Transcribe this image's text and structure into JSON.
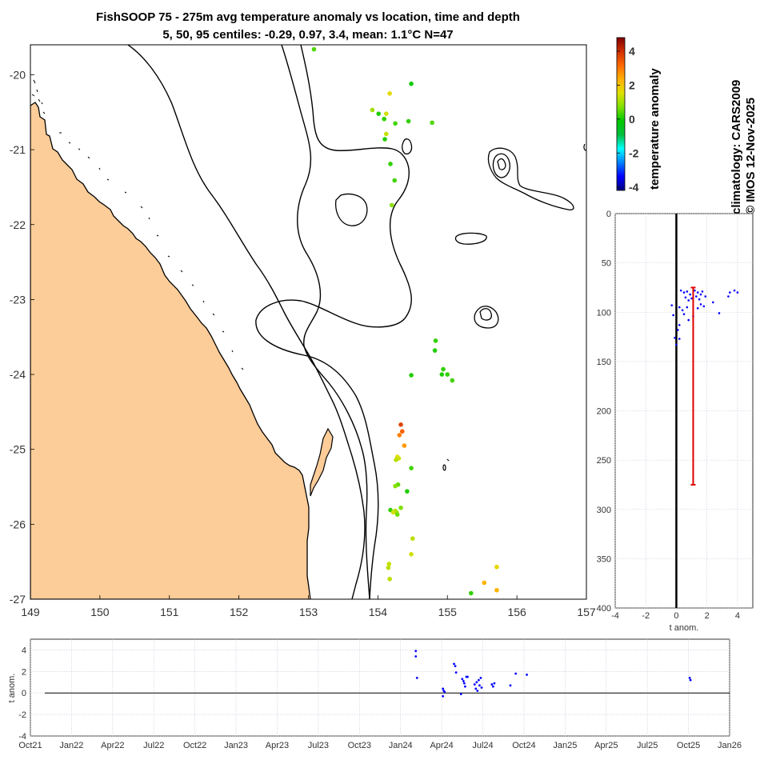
{
  "titles": {
    "line1": "FishSOOP 75 - 275m avg temperature anomaly vs location, time and depth",
    "line2": "5, 50, 95 centiles: -0.29, 0.97, 3.4, mean: 1.1°C N=47"
  },
  "side_text": {
    "climatology": "climatology: CARS2009",
    "copyright": "© IMOS 12-Nov-2025"
  },
  "chart_data": [
    {
      "type": "scatter",
      "name": "map",
      "xlabel": "",
      "ylabel": "",
      "xlim": [
        149,
        157
      ],
      "ylim": [
        -27,
        -19.6
      ],
      "x_ticks": [
        "149",
        "150",
        "151",
        "152",
        "153",
        "154",
        "155",
        "156",
        "157"
      ],
      "y_ticks": [
        "-20",
        "-21",
        "-22",
        "-23",
        "-24",
        "-25",
        "-26",
        "-27"
      ],
      "points": [
        {
          "lon": 153.08,
          "lat": -19.66,
          "anom": 0.4
        },
        {
          "lon": 154.48,
          "lat": -20.12,
          "anom": 0.0
        },
        {
          "lon": 154.17,
          "lat": -20.25,
          "anom": 1.6
        },
        {
          "lon": 153.92,
          "lat": -20.47,
          "anom": 1.0
        },
        {
          "lon": 154.01,
          "lat": -20.52,
          "anom": 0.1
        },
        {
          "lon": 154.12,
          "lat": -20.52,
          "anom": 1.4
        },
        {
          "lon": 154.09,
          "lat": -20.59,
          "anom": 0.2
        },
        {
          "lon": 154.25,
          "lat": -20.65,
          "anom": 0.3
        },
        {
          "lon": 154.44,
          "lat": -20.62,
          "anom": 0.2
        },
        {
          "lon": 154.78,
          "lat": -20.64,
          "anom": 0.4
        },
        {
          "lon": 154.12,
          "lat": -20.79,
          "anom": 1.3
        },
        {
          "lon": 154.1,
          "lat": -20.86,
          "anom": 0.1
        },
        {
          "lon": 154.18,
          "lat": -21.19,
          "anom": 0.2
        },
        {
          "lon": 154.24,
          "lat": -21.41,
          "anom": 0.3
        },
        {
          "lon": 154.2,
          "lat": -21.74,
          "anom": 0.8
        },
        {
          "lon": 154.83,
          "lat": -23.55,
          "anom": 0.2
        },
        {
          "lon": 154.82,
          "lat": -23.68,
          "anom": 0.1
        },
        {
          "lon": 154.94,
          "lat": -23.93,
          "anom": 0.2
        },
        {
          "lon": 154.92,
          "lat": -24.0,
          "anom": 0.1
        },
        {
          "lon": 155.0,
          "lat": -24.0,
          "anom": 0.2
        },
        {
          "lon": 155.07,
          "lat": -24.08,
          "anom": 0.3
        },
        {
          "lon": 154.48,
          "lat": -24.01,
          "anom": 0.1
        },
        {
          "lon": 154.33,
          "lat": -24.67,
          "anom": 3.7
        },
        {
          "lon": 154.35,
          "lat": -24.76,
          "anom": 3.3
        },
        {
          "lon": 154.31,
          "lat": -24.81,
          "anom": 2.9
        },
        {
          "lon": 154.38,
          "lat": -24.95,
          "anom": 2.6
        },
        {
          "lon": 154.28,
          "lat": -25.1,
          "anom": 1.6
        },
        {
          "lon": 154.3,
          "lat": -25.12,
          "anom": 1.4
        },
        {
          "lon": 154.26,
          "lat": -25.14,
          "anom": 1.2
        },
        {
          "lon": 154.48,
          "lat": -25.25,
          "anom": 0.3
        },
        {
          "lon": 154.29,
          "lat": -25.47,
          "anom": 0.5
        },
        {
          "lon": 154.25,
          "lat": -25.49,
          "anom": 0.8
        },
        {
          "lon": 154.42,
          "lat": -25.56,
          "anom": 0.1
        },
        {
          "lon": 154.18,
          "lat": -25.81,
          "anom": 0.2
        },
        {
          "lon": 154.25,
          "lat": -25.82,
          "anom": 1.2
        },
        {
          "lon": 154.27,
          "lat": -25.84,
          "anom": 1.0
        },
        {
          "lon": 154.33,
          "lat": -25.78,
          "anom": 0.7
        },
        {
          "lon": 154.28,
          "lat": -25.87,
          "anom": 0.6
        },
        {
          "lon": 154.22,
          "lat": -25.84,
          "anom": 1.4
        },
        {
          "lon": 154.5,
          "lat": -26.19,
          "anom": 1.2
        },
        {
          "lon": 154.48,
          "lat": -26.4,
          "anom": 1.4
        },
        {
          "lon": 154.16,
          "lat": -26.53,
          "anom": 1.3
        },
        {
          "lon": 154.15,
          "lat": -26.58,
          "anom": 1.2
        },
        {
          "lon": 154.17,
          "lat": -26.73,
          "anom": 1.2
        },
        {
          "lon": 155.71,
          "lat": -26.57,
          "anom": 1.7
        },
        {
          "lon": 155.53,
          "lat": -26.78,
          "anom": 2.3
        },
        {
          "lon": 155.71,
          "lat": -26.88,
          "anom": 2.3
        },
        {
          "lon": 155.34,
          "lat": -26.92,
          "anom": 0.2
        }
      ]
    },
    {
      "type": "colorbar",
      "name": "colorbar",
      "label": "temperature anomaly",
      "range": [
        -4.2,
        4.8
      ],
      "ticks": [
        "-4",
        "-2",
        "0",
        "2",
        "4"
      ],
      "tick_values": [
        -4,
        -2,
        0,
        2,
        4
      ],
      "colors": [
        "#00007f",
        "#0000ff",
        "#007fff",
        "#00ffff",
        "#00bf40",
        "#00c800",
        "#7fe000",
        "#e0e000",
        "#ffb000",
        "#ff6a00",
        "#d03000",
        "#7f0000"
      ]
    },
    {
      "type": "scatter",
      "name": "depth-profile",
      "xlabel": "t anom.",
      "xlim": [
        -4,
        5
      ],
      "ylim": [
        0,
        400
      ],
      "x_ticks": [
        "-4",
        "-2",
        "0",
        "2",
        "4"
      ],
      "x_tick_values": [
        -4,
        -2,
        0,
        2,
        4
      ],
      "y_ticks": [
        "0",
        "50",
        "100",
        "150",
        "200",
        "250",
        "300",
        "350",
        "400"
      ],
      "y_tick_values": [
        0,
        50,
        100,
        150,
        200,
        250,
        300,
        350,
        400
      ],
      "mean": 1.1,
      "depth_range": [
        75,
        275
      ],
      "points": [
        {
          "x": 0.3,
          "y": 78
        },
        {
          "x": 0.5,
          "y": 80
        },
        {
          "x": 0.7,
          "y": 79
        },
        {
          "x": 0.9,
          "y": 82
        },
        {
          "x": 1.2,
          "y": 78
        },
        {
          "x": 1.4,
          "y": 80
        },
        {
          "x": 1.6,
          "y": 82
        },
        {
          "x": 1.7,
          "y": 79
        },
        {
          "x": 0.6,
          "y": 85
        },
        {
          "x": 0.8,
          "y": 88
        },
        {
          "x": 1.0,
          "y": 86
        },
        {
          "x": 1.3,
          "y": 84
        },
        {
          "x": 1.5,
          "y": 87
        },
        {
          "x": 1.9,
          "y": 84
        },
        {
          "x": 3.5,
          "y": 80
        },
        {
          "x": 3.8,
          "y": 78
        },
        {
          "x": 4.0,
          "y": 80
        },
        {
          "x": 3.4,
          "y": 84
        },
        {
          "x": 2.4,
          "y": 90
        },
        {
          "x": 2.8,
          "y": 101
        },
        {
          "x": -0.3,
          "y": 93
        },
        {
          "x": -0.2,
          "y": 103
        },
        {
          "x": 0.2,
          "y": 95
        },
        {
          "x": 0.4,
          "y": 98
        },
        {
          "x": 0.5,
          "y": 102
        },
        {
          "x": 0.7,
          "y": 95
        },
        {
          "x": 1.4,
          "y": 96
        },
        {
          "x": 1.6,
          "y": 92
        },
        {
          "x": 1.8,
          "y": 94
        },
        {
          "x": 0.2,
          "y": 113
        },
        {
          "x": 0.1,
          "y": 118
        },
        {
          "x": -0.1,
          "y": 126
        },
        {
          "x": 0.2,
          "y": 127
        },
        {
          "x": 0.0,
          "y": 133
        },
        {
          "x": 0.8,
          "y": 108
        },
        {
          "x": 1.1,
          "y": 104
        }
      ]
    },
    {
      "type": "scatter",
      "name": "time-series",
      "ylabel": "t anom.",
      "ylim": [
        -4,
        5
      ],
      "y_ticks": [
        "4",
        "2",
        "0",
        "-2",
        "-4"
      ],
      "y_tick_values": [
        4,
        2,
        0,
        -2,
        -4
      ],
      "x_ticks": [
        "Oct21",
        "Jan22",
        "Apr22",
        "Jul22",
        "Oct22",
        "Jan23",
        "Apr23",
        "Jul23",
        "Oct23",
        "Jan24",
        "Apr24",
        "Jul24",
        "Oct24",
        "Jan25",
        "Apr25",
        "Jul25",
        "Oct25",
        "Jan26"
      ],
      "points": [
        {
          "t": 9.37,
          "y": 3.9
        },
        {
          "t": 9.37,
          "y": 3.4
        },
        {
          "t": 9.4,
          "y": 1.4
        },
        {
          "t": 10.03,
          "y": 0.4
        },
        {
          "t": 10.03,
          "y": -0.3
        },
        {
          "t": 10.05,
          "y": 0.2
        },
        {
          "t": 10.07,
          "y": 0.1
        },
        {
          "t": 10.3,
          "y": 2.7
        },
        {
          "t": 10.33,
          "y": 2.5
        },
        {
          "t": 10.35,
          "y": 1.9
        },
        {
          "t": 10.5,
          "y": 1.3
        },
        {
          "t": 10.53,
          "y": 1.1
        },
        {
          "t": 10.55,
          "y": 0.9
        },
        {
          "t": 10.57,
          "y": 0.6
        },
        {
          "t": 10.6,
          "y": 1.5
        },
        {
          "t": 10.47,
          "y": -0.1
        },
        {
          "t": 10.63,
          "y": 1.5
        },
        {
          "t": 10.8,
          "y": 0.8
        },
        {
          "t": 10.83,
          "y": 0.4
        },
        {
          "t": 10.85,
          "y": 1.0
        },
        {
          "t": 10.87,
          "y": 0.2
        },
        {
          "t": 10.9,
          "y": 1.2
        },
        {
          "t": 10.92,
          "y": 0.7
        },
        {
          "t": 10.95,
          "y": 1.4
        },
        {
          "t": 10.97,
          "y": 0.5
        },
        {
          "t": 11.22,
          "y": 0.8
        },
        {
          "t": 11.25,
          "y": 0.6
        },
        {
          "t": 11.28,
          "y": 0.9
        },
        {
          "t": 11.67,
          "y": 0.7
        },
        {
          "t": 11.8,
          "y": 1.8
        },
        {
          "t": 12.07,
          "y": 1.7
        },
        {
          "t": 16.03,
          "y": 1.4
        },
        {
          "t": 16.05,
          "y": 1.2
        }
      ]
    }
  ]
}
